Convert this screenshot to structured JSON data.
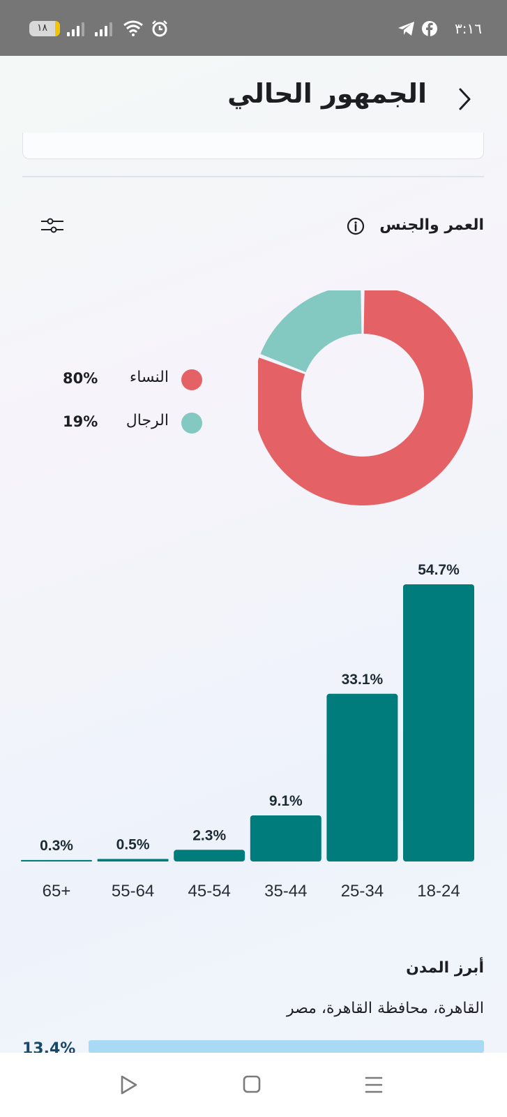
{
  "status_bar": {
    "battery_level": "١٨",
    "time": "٣:١٦",
    "icons": [
      "signal-icon",
      "signal-icon",
      "wifi-icon",
      "alarm-icon",
      "telegram-icon",
      "facebook-icon"
    ]
  },
  "header": {
    "title": "الجمهور الحالي",
    "back_icon": "chevron-right-icon"
  },
  "section": {
    "title": "العمر والجنس",
    "info_icon": "info-icon",
    "filter_icon": "filter-sliders-icon"
  },
  "gender": {
    "items": [
      {
        "label": "النساء",
        "value": "80%",
        "fraction": 0.8,
        "color": "#e46266"
      },
      {
        "label": "الرجال",
        "value": "19%",
        "fraction": 0.19,
        "color": "#84c9c1"
      }
    ]
  },
  "chart_data": {
    "type": "bar",
    "categories": [
      "18-24",
      "25-34",
      "35-44",
      "45-54",
      "55-64",
      "65+"
    ],
    "values": [
      54.7,
      33.1,
      9.1,
      2.3,
      0.5,
      0.3
    ],
    "labels": [
      "54.7%",
      "33.1%",
      "9.1%",
      "2.3%",
      "0.5%",
      "0.3%"
    ],
    "color": "#017c7d",
    "ylim": [
      0,
      54.7
    ],
    "direction": "rtl"
  },
  "cities": {
    "title": "أبرز المدن",
    "items": [
      {
        "name": "القاهرة، محافظة القاهرة، مصر",
        "value": "13.4%",
        "bar_color": "#a8daf5"
      }
    ]
  },
  "navbar": {
    "icons": [
      "back-triangle-icon",
      "home-square-icon",
      "menu-icon"
    ]
  }
}
